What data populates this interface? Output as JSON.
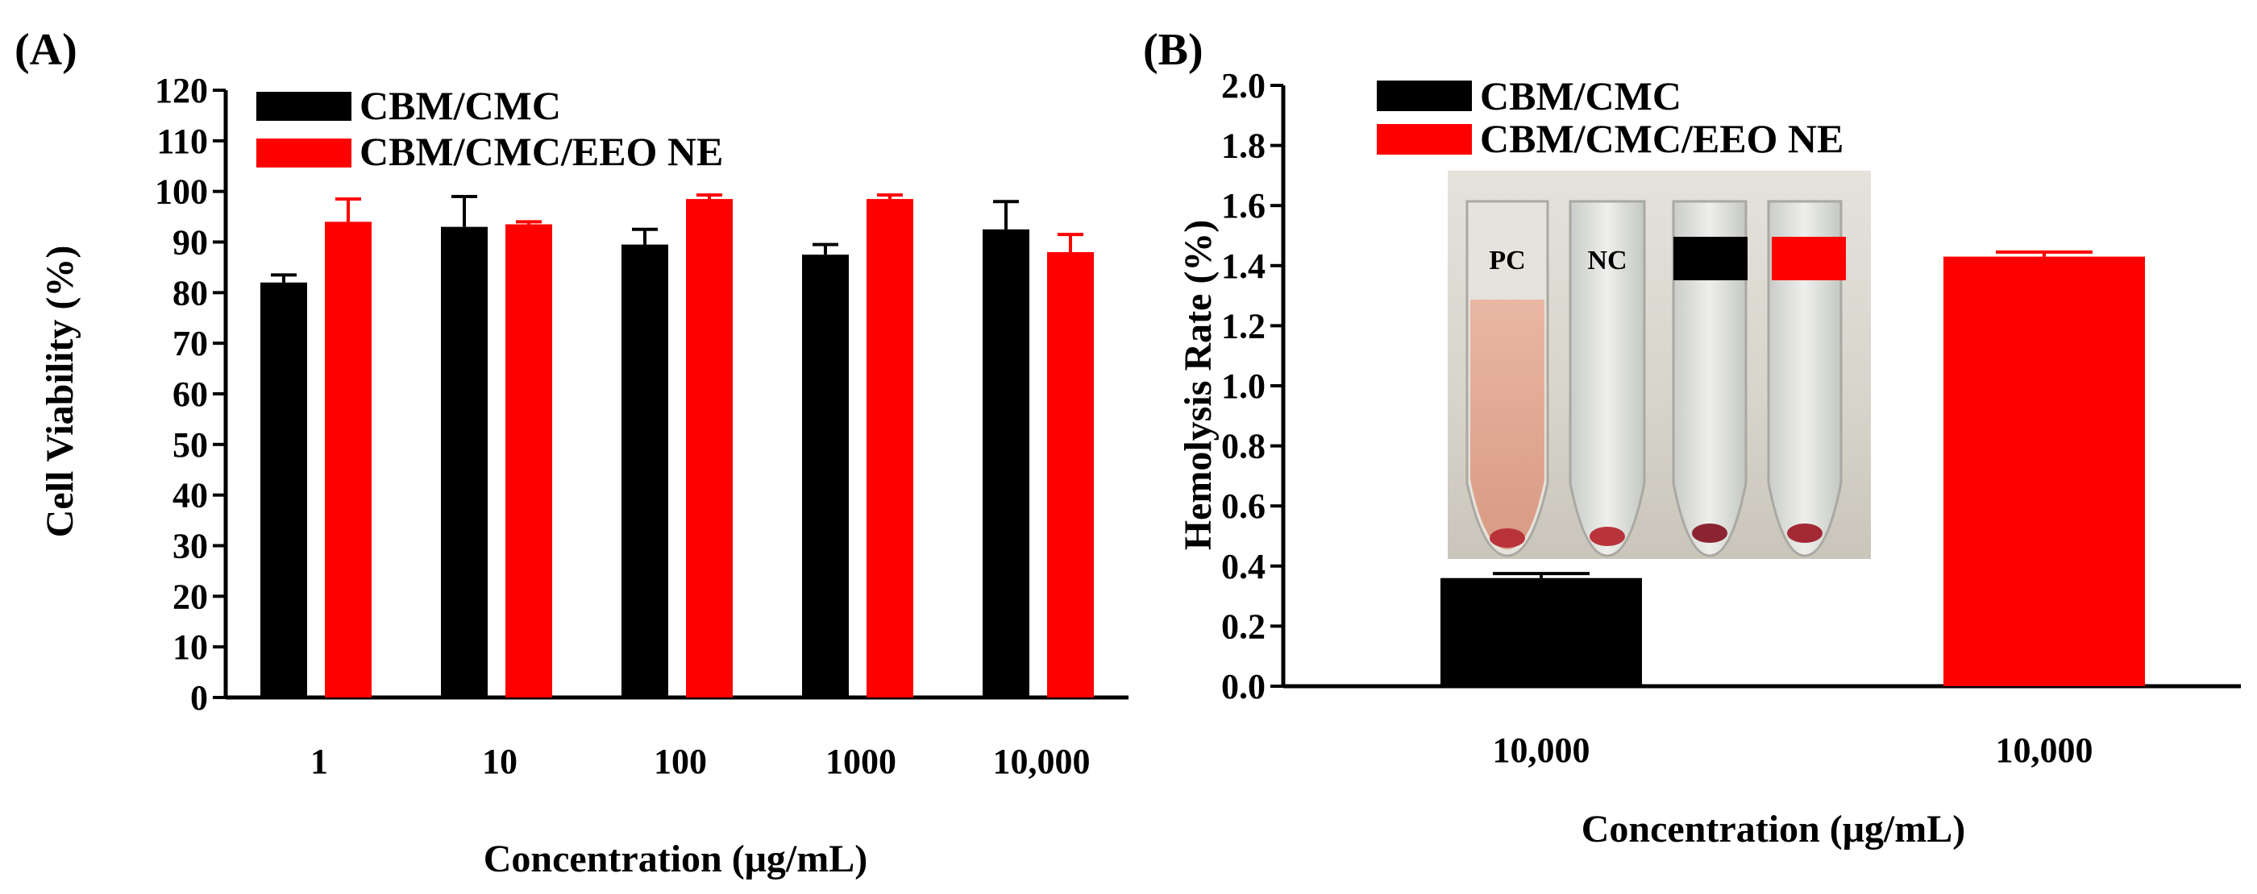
{
  "chart_data": [
    {
      "type": "bar",
      "panel_label": "(A)",
      "title": "",
      "xlabel": "Concentration (μg/mL)",
      "ylabel": "Cell Viability (%)",
      "ylim": [
        0,
        120
      ],
      "ytick_step": 10,
      "categories": [
        "1",
        "10",
        "100",
        "1000",
        "10,000"
      ],
      "legend_position": "top-left",
      "series": [
        {
          "name": "CBM/CMC",
          "color": "#000000",
          "values": [
            82,
            93,
            89.5,
            87.5,
            92.5
          ],
          "errors": [
            1.5,
            6,
            3,
            2,
            5.5
          ]
        },
        {
          "name": "CBM/CMC/EEO NE",
          "color": "#ff0000",
          "values": [
            94,
            93.5,
            98.5,
            98.5,
            88
          ],
          "errors": [
            4.5,
            0.5,
            0.8,
            0.8,
            3.5
          ]
        }
      ]
    },
    {
      "type": "bar",
      "panel_label": "(B)",
      "title": "",
      "xlabel": "Concentration (μg/mL)",
      "ylabel": "Hemolysis Rate (%)",
      "ylim": [
        0,
        2.0
      ],
      "ytick_step": 0.2,
      "categories": [
        "10,000",
        "10,000"
      ],
      "legend_position": "top-left",
      "series": [
        {
          "name": "CBM/CMC",
          "color": "#000000",
          "values": [
            0.36,
            null
          ],
          "errors": [
            0.015,
            null
          ]
        },
        {
          "name": "CBM/CMC/EEO NE",
          "color": "#ff0000",
          "values": [
            null,
            1.43
          ],
          "errors": [
            null,
            0.015
          ]
        }
      ],
      "inset_photo": {
        "tube_labels": [
          "PC",
          "NC"
        ]
      }
    }
  ]
}
